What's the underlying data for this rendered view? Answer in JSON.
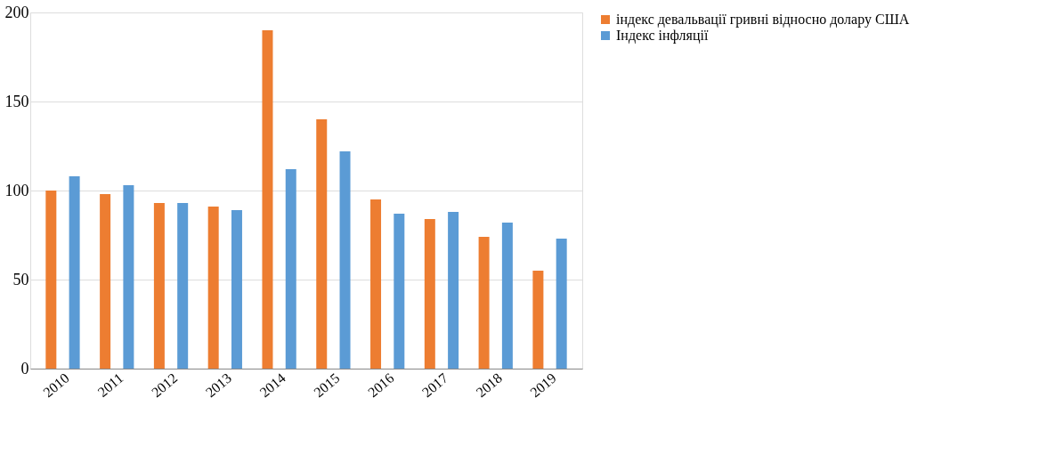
{
  "chart_data": {
    "type": "bar",
    "categories": [
      "2010",
      "2011",
      "2012",
      "2013",
      "2014",
      "2015",
      "2016",
      "2017",
      "2018",
      "2019"
    ],
    "series": [
      {
        "name": "індекс девальвації гривні відносно долару США",
        "color": "#ed7d31",
        "values": [
          100,
          98,
          93,
          91,
          190,
          140,
          95,
          84,
          74,
          55
        ]
      },
      {
        "name": "Індекс інфляції",
        "color": "#5b9bd5",
        "values": [
          108,
          103,
          93,
          89,
          112,
          122,
          87,
          88,
          82,
          73
        ]
      }
    ],
    "ylim": [
      0,
      200
    ],
    "yticks": [
      0,
      50,
      100,
      150,
      200
    ],
    "grid": "y",
    "legend": "right"
  }
}
